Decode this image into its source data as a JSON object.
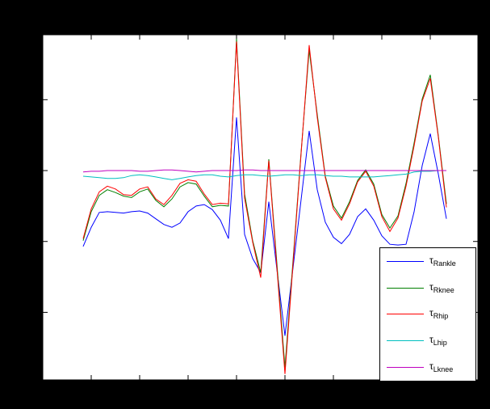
{
  "figure": {
    "background_color": "#000000",
    "axes_background": "#ffffff",
    "axes_border_color": "#000000"
  },
  "chart_data": {
    "type": "line",
    "title": "",
    "xlabel": "",
    "ylabel": "",
    "grid": false,
    "tick_labels_visible": false,
    "legend_position": "bottom-right",
    "x": [
      0,
      1,
      2,
      3,
      4,
      5,
      6,
      7,
      8,
      9,
      10,
      11,
      12,
      13,
      14,
      15,
      16,
      17,
      18,
      19,
      20,
      21,
      22,
      23,
      24,
      25,
      26,
      27,
      28,
      29,
      30,
      31,
      32,
      33,
      34,
      35,
      36,
      37,
      38,
      39,
      40,
      41,
      42,
      43,
      44,
      45
    ],
    "xlim": [
      -5,
      48.9
    ],
    "ylim": [
      -295.3,
      191.6
    ],
    "xticks": [
      1,
      7,
      13,
      19,
      25,
      31,
      37,
      43
    ],
    "yticks": [
      -200,
      -100,
      0,
      100
    ],
    "series": [
      {
        "name": "Rankle",
        "label_prefix": "τ",
        "label_sub": "Rankle",
        "color": "#0000ff",
        "values": [
          -107,
          -80,
          -59,
          -58,
          -59,
          -60,
          -58,
          -57,
          -60,
          -68,
          -76,
          -80,
          -74,
          -58,
          -50,
          -48,
          -55,
          -70,
          -96,
          75,
          -90,
          -124,
          -144,
          -44,
          -139,
          -233,
          -137,
          -41,
          56,
          -27,
          -73,
          -94,
          -103,
          -90,
          -65,
          -54,
          -70,
          -92,
          -104,
          -105,
          -104,
          -58,
          7,
          52,
          -5,
          -68
        ]
      },
      {
        "name": "Rknee",
        "label_prefix": "τ",
        "label_sub": "Rknee",
        "color": "#007f00",
        "values": [
          -99,
          -58,
          -35,
          -27,
          -31,
          -36,
          -38,
          -30,
          -26,
          -42,
          -51,
          -40,
          -23,
          -17,
          -19,
          -36,
          -51,
          -49,
          -50,
          186,
          -33,
          -99,
          -144,
          16,
          -131,
          -278,
          -127,
          26,
          170,
          79,
          -8,
          -50,
          -67,
          -44,
          -14,
          1,
          -19,
          -62,
          -81,
          -64,
          -18,
          39,
          101,
          135,
          49,
          -47
        ]
      },
      {
        "name": "Rhip",
        "label_prefix": "τ",
        "label_sub": "Rhip",
        "color": "#ff0000",
        "values": [
          -96,
          -54,
          -30,
          -22,
          -26,
          -34,
          -35,
          -26,
          -23,
          -40,
          -48,
          -35,
          -18,
          -13,
          -15,
          -33,
          -48,
          -46,
          -47,
          182,
          -39,
          -101,
          -151,
          14,
          -137,
          -287,
          -132,
          24,
          177,
          75,
          -10,
          -54,
          -70,
          -47,
          -16,
          -1,
          -22,
          -65,
          -86,
          -67,
          -22,
          35,
          98,
          130,
          47,
          -52
        ]
      },
      {
        "name": "Lhip",
        "label_prefix": "τ",
        "label_sub": "Lhip",
        "color": "#00bfbf",
        "values": [
          -8,
          -9,
          -10,
          -11,
          -11,
          -10,
          -7,
          -6,
          -7,
          -9,
          -11,
          -13,
          -11,
          -9,
          -7,
          -6,
          -6,
          -8,
          -9,
          -7,
          -6,
          -6,
          -7,
          -8,
          -7,
          -6,
          -6,
          -7,
          -6,
          -6,
          -7,
          -8,
          -8,
          -9,
          -9,
          -9,
          -9,
          -8,
          -7,
          -6,
          -5,
          -2,
          -1,
          -1,
          0,
          0
        ]
      },
      {
        "name": "Lknee",
        "label_prefix": "τ",
        "label_sub": "Lknee",
        "color": "#bf00bf",
        "values": [
          -2,
          -1,
          -1,
          0,
          0,
          0,
          0,
          -1,
          -1,
          0,
          1,
          1,
          0,
          -1,
          -2,
          -1,
          0,
          0,
          0,
          0,
          1,
          1,
          0,
          0,
          0,
          0,
          0,
          0,
          0,
          0,
          0,
          0,
          0,
          0,
          0,
          0,
          0,
          0,
          0,
          0,
          0,
          0,
          0,
          0,
          0,
          0
        ]
      }
    ]
  }
}
